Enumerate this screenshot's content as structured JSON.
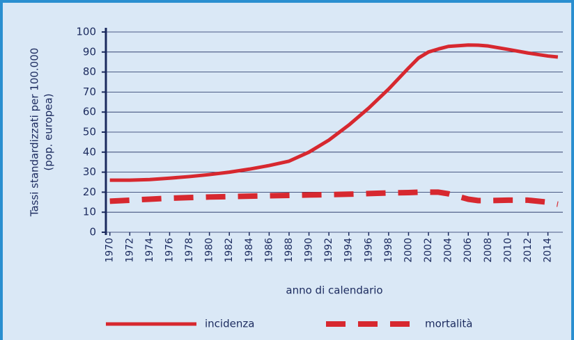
{
  "chart_data": {
    "type": "line",
    "y_label": [
      "Tassi standardizzati per 100.000",
      "(pop. europea)"
    ],
    "x_label": "anno di calendario",
    "x": [
      1970,
      1972,
      1974,
      1976,
      1978,
      1980,
      1982,
      1984,
      1986,
      1988,
      1990,
      1992,
      1994,
      1996,
      1998,
      2000,
      2001,
      2002,
      2003,
      2004,
      2006,
      2007,
      2008,
      2010,
      2012,
      2014,
      2015
    ],
    "series": [
      {
        "name": "incidenza",
        "color": "#d7282f",
        "style": "solid",
        "values": [
          26,
          26,
          26.3,
          27,
          27.8,
          28.8,
          30,
          31.5,
          33.3,
          35.5,
          40,
          46,
          53.5,
          62,
          71.5,
          82,
          87,
          90,
          91.5,
          92.8,
          93.5,
          93.4,
          93,
          91.3,
          89.5,
          88,
          87.5
        ]
      },
      {
        "name": "mortalità",
        "color": "#d7282f",
        "style": "dashed",
        "values": [
          15.5,
          16,
          16.5,
          17,
          17.3,
          17.6,
          17.8,
          18,
          18.2,
          18.4,
          18.6,
          18.8,
          19,
          19.3,
          19.6,
          19.8,
          20,
          20,
          20,
          19.2,
          16.5,
          15.8,
          15.8,
          16,
          16,
          15,
          14
        ]
      }
    ],
    "xlim": [
      1969.6,
      2015.5
    ],
    "xticks": [
      1970,
      1972,
      1974,
      1976,
      1978,
      1980,
      1982,
      1984,
      1986,
      1988,
      1990,
      1992,
      1994,
      1996,
      1998,
      2000,
      2002,
      2004,
      2006,
      2008,
      2010,
      2012,
      2014
    ],
    "ylim": [
      0,
      100
    ],
    "yticks": [
      0,
      10,
      20,
      30,
      40,
      50,
      60,
      70,
      80,
      90,
      100
    ],
    "grid": true
  }
}
